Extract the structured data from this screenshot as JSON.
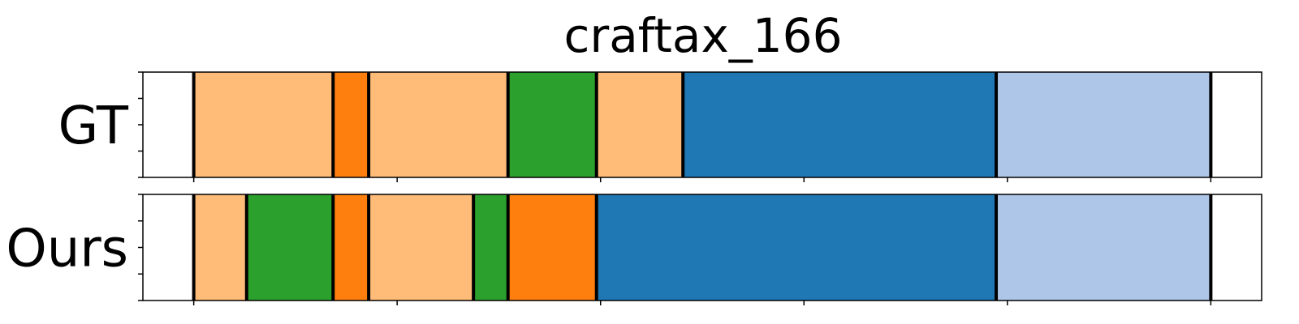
{
  "chart_data": {
    "type": "bar",
    "title": "craftax_166",
    "xlabel": "",
    "ylabel": "",
    "xlim": [
      0,
      1100
    ],
    "x_ticks": [
      50,
      250,
      450,
      650,
      850,
      1050
    ],
    "colors": {
      "light_orange": "#ffbb78",
      "orange": "#ff7f0e",
      "green": "#2ca02c",
      "blue": "#1f77b4",
      "light_blue": "#aec7e8"
    },
    "rows": [
      {
        "label": "GT",
        "segments": [
          {
            "start": 50,
            "end": 187,
            "color": "light_orange"
          },
          {
            "start": 187,
            "end": 222,
            "color": "orange"
          },
          {
            "start": 222,
            "end": 359,
            "color": "light_orange"
          },
          {
            "start": 359,
            "end": 446,
            "color": "green"
          },
          {
            "start": 446,
            "end": 531,
            "color": "light_orange"
          },
          {
            "start": 531,
            "end": 839,
            "color": "blue"
          },
          {
            "start": 839,
            "end": 1050,
            "color": "light_blue"
          }
        ]
      },
      {
        "label": "Ours",
        "segments": [
          {
            "start": 50,
            "end": 102,
            "color": "light_orange"
          },
          {
            "start": 102,
            "end": 187,
            "color": "green"
          },
          {
            "start": 187,
            "end": 222,
            "color": "orange"
          },
          {
            "start": 222,
            "end": 325,
            "color": "light_orange"
          },
          {
            "start": 325,
            "end": 359,
            "color": "green"
          },
          {
            "start": 359,
            "end": 446,
            "color": "orange"
          },
          {
            "start": 446,
            "end": 839,
            "color": "blue"
          },
          {
            "start": 839,
            "end": 1050,
            "color": "light_blue"
          }
        ]
      }
    ]
  }
}
